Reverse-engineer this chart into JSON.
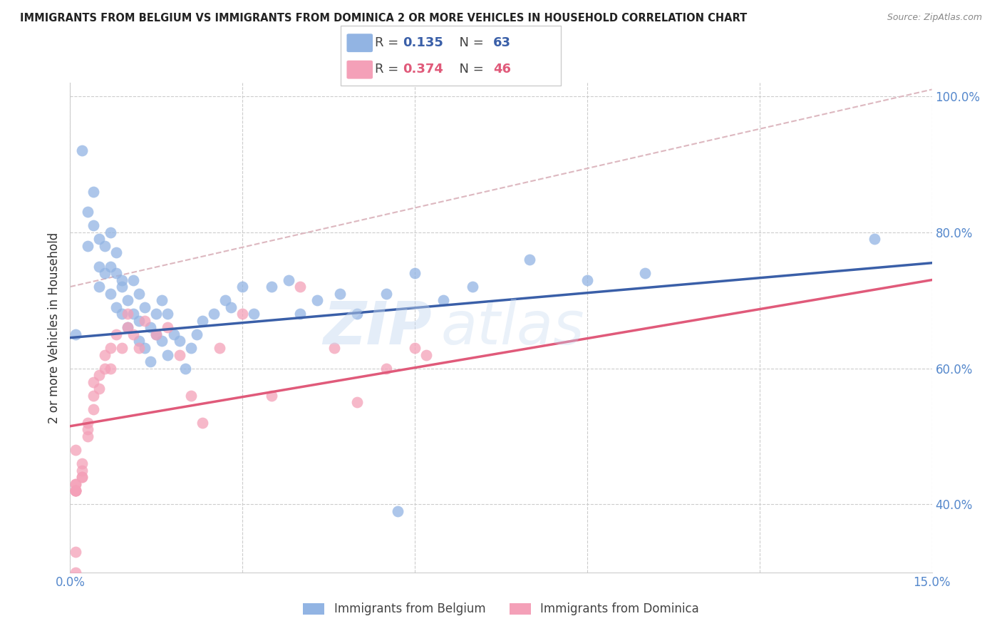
{
  "title": "IMMIGRANTS FROM BELGIUM VS IMMIGRANTS FROM DOMINICA 2 OR MORE VEHICLES IN HOUSEHOLD CORRELATION CHART",
  "source": "Source: ZipAtlas.com",
  "ylabel": "2 or more Vehicles in Household",
  "xlim": [
    0.0,
    0.15
  ],
  "ylim": [
    0.3,
    1.02
  ],
  "xticks": [
    0.0,
    0.03,
    0.06,
    0.09,
    0.12,
    0.15
  ],
  "xticklabels": [
    "0.0%",
    "",
    "",
    "",
    "",
    "15.0%"
  ],
  "yticks_right": [
    0.4,
    0.6,
    0.8,
    1.0
  ],
  "ytick_labels_right": [
    "40.0%",
    "60.0%",
    "80.0%",
    "100.0%"
  ],
  "belgium_color": "#92b4e3",
  "dominica_color": "#f4a0b8",
  "trend_blue_color": "#3a5fa8",
  "trend_pink_color": "#e05a7a",
  "diag_color": "#ddb8c0",
  "watermark": "ZIPatlas",
  "belgium_trend_x0": 0.0,
  "belgium_trend_y0": 0.645,
  "belgium_trend_x1": 0.15,
  "belgium_trend_y1": 0.755,
  "dominica_trend_x0": 0.0,
  "dominica_trend_y0": 0.515,
  "dominica_trend_x1": 0.15,
  "dominica_trend_y1": 0.73,
  "belgium_x": [
    0.001,
    0.002,
    0.003,
    0.003,
    0.004,
    0.004,
    0.005,
    0.005,
    0.005,
    0.006,
    0.006,
    0.007,
    0.007,
    0.007,
    0.008,
    0.008,
    0.008,
    0.009,
    0.009,
    0.009,
    0.01,
    0.01,
    0.011,
    0.011,
    0.012,
    0.012,
    0.012,
    0.013,
    0.013,
    0.014,
    0.014,
    0.015,
    0.015,
    0.016,
    0.016,
    0.017,
    0.017,
    0.018,
    0.019,
    0.02,
    0.021,
    0.022,
    0.023,
    0.025,
    0.027,
    0.028,
    0.03,
    0.032,
    0.035,
    0.038,
    0.04,
    0.043,
    0.047,
    0.05,
    0.055,
    0.06,
    0.065,
    0.07,
    0.08,
    0.09,
    0.1,
    0.14,
    0.057
  ],
  "belgium_y": [
    0.65,
    0.92,
    0.83,
    0.78,
    0.86,
    0.81,
    0.79,
    0.75,
    0.72,
    0.78,
    0.74,
    0.75,
    0.71,
    0.8,
    0.69,
    0.74,
    0.77,
    0.72,
    0.68,
    0.73,
    0.7,
    0.66,
    0.68,
    0.73,
    0.64,
    0.67,
    0.71,
    0.63,
    0.69,
    0.66,
    0.61,
    0.65,
    0.68,
    0.64,
    0.7,
    0.62,
    0.68,
    0.65,
    0.64,
    0.6,
    0.63,
    0.65,
    0.67,
    0.68,
    0.7,
    0.69,
    0.72,
    0.68,
    0.72,
    0.73,
    0.68,
    0.7,
    0.71,
    0.68,
    0.71,
    0.74,
    0.7,
    0.72,
    0.76,
    0.73,
    0.74,
    0.79,
    0.39
  ],
  "dominica_x": [
    0.001,
    0.001,
    0.001,
    0.001,
    0.001,
    0.001,
    0.001,
    0.002,
    0.002,
    0.002,
    0.002,
    0.003,
    0.003,
    0.003,
    0.004,
    0.004,
    0.004,
    0.005,
    0.005,
    0.006,
    0.006,
    0.007,
    0.007,
    0.008,
    0.009,
    0.01,
    0.01,
    0.011,
    0.012,
    0.013,
    0.015,
    0.017,
    0.019,
    0.021,
    0.023,
    0.026,
    0.03,
    0.035,
    0.04,
    0.046,
    0.05,
    0.055,
    0.06,
    0.062,
    0.001,
    0.001
  ],
  "dominica_y": [
    0.42,
    0.43,
    0.42,
    0.42,
    0.43,
    0.42,
    0.33,
    0.44,
    0.44,
    0.45,
    0.46,
    0.5,
    0.51,
    0.52,
    0.54,
    0.56,
    0.58,
    0.57,
    0.59,
    0.6,
    0.62,
    0.6,
    0.63,
    0.65,
    0.63,
    0.66,
    0.68,
    0.65,
    0.63,
    0.67,
    0.65,
    0.66,
    0.62,
    0.56,
    0.52,
    0.63,
    0.68,
    0.56,
    0.72,
    0.63,
    0.55,
    0.6,
    0.63,
    0.62,
    0.48,
    0.3
  ]
}
